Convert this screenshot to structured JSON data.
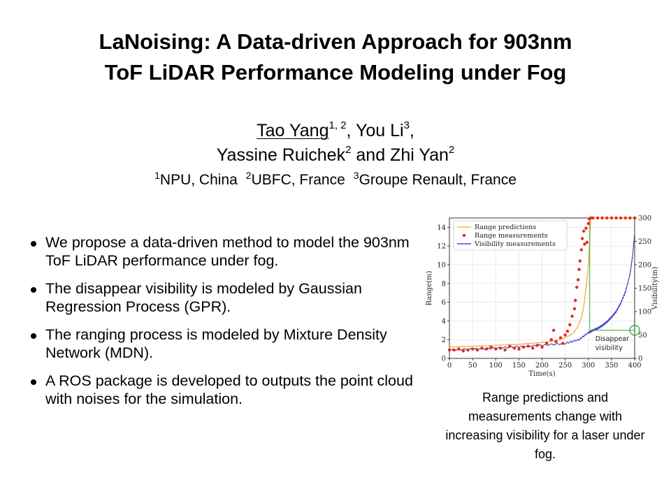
{
  "title": {
    "line1": "LaNoising: A Data-driven Approach for 903nm",
    "line2": "ToF LiDAR Performance Modeling under Fog"
  },
  "authors": {
    "a1": "Tao Yang",
    "a1_sup": "1, 2",
    "sep1": ", ",
    "a2": "You Li",
    "a2_sup": "3",
    "sep2": ",",
    "a3": "Yassine Ruichek",
    "a3_sup": "2",
    "sep3": " and ",
    "a4": "Zhi Yan",
    "a4_sup": "2"
  },
  "affiliations": [
    {
      "sup": "1",
      "text": "NPU, China"
    },
    {
      "sup": "2",
      "text": "UBFC, France"
    },
    {
      "sup": "3",
      "text": "Groupe Renault, France"
    }
  ],
  "bullets": [
    "We propose a data-driven method to model the 903nm ToF LiDAR performance under fog.",
    "The disappear visibility is modeled by Gaussian Regression Process (GPR).",
    "The ranging process is modeled by Mixture Density Network (MDN).",
    "A ROS package is developed to outputs the point cloud with noises for the simulation."
  ],
  "caption": "Range predictions and measurements change with increasing visibility for a laser under fog.",
  "chart_data": {
    "type": "line",
    "xlabel": "Time(s)",
    "ylabel_left": "Range(m)",
    "ylabel_right": "Visibility(m)",
    "xlim": [
      0,
      400
    ],
    "ylim_left": [
      0,
      15
    ],
    "ylim_right": [
      0,
      300
    ],
    "x_ticks": [
      0,
      50,
      100,
      150,
      200,
      250,
      300,
      350,
      400
    ],
    "y_left_ticks": [
      0,
      2,
      4,
      6,
      8,
      10,
      12,
      14
    ],
    "y_right_ticks": [
      0,
      50,
      100,
      150,
      200,
      250,
      300
    ],
    "grid": true,
    "legend_position": "top-left",
    "annotation": {
      "text_line1": "Disappear",
      "text_line2": "visibility",
      "x": 400,
      "visibility": 60
    },
    "colors": {
      "prediction": "#f5a623",
      "measurement": "#e8271c",
      "visibility": "#2b2bb8",
      "annotation": "#33aa33"
    },
    "series": [
      {
        "name": "Range predictions",
        "axis": "left",
        "x": [
          0,
          50,
          100,
          150,
          200,
          230,
          250,
          265,
          275,
          285,
          290,
          295,
          300,
          303,
          305,
          310,
          350,
          400
        ],
        "y": [
          1.2,
          1.3,
          1.4,
          1.5,
          1.7,
          1.9,
          2.2,
          2.6,
          3.2,
          4.3,
          5.5,
          7.5,
          9.8,
          12.5,
          15.0,
          15.0,
          15.0,
          15.0
        ]
      },
      {
        "name": "Range measurements",
        "axis": "left",
        "x": [
          0,
          10,
          20,
          30,
          40,
          50,
          60,
          70,
          80,
          90,
          100,
          110,
          120,
          130,
          140,
          150,
          160,
          170,
          180,
          190,
          200,
          210,
          220,
          225,
          230,
          240,
          245,
          250,
          255,
          260,
          265,
          270,
          272,
          275,
          278,
          280,
          282,
          285,
          287,
          290,
          292,
          295,
          297,
          300,
          302,
          305,
          310,
          320,
          330,
          340,
          350,
          360,
          370,
          380,
          390,
          400
        ],
        "y": [
          0.9,
          0.9,
          1.0,
          0.8,
          0.9,
          1.0,
          0.9,
          1.1,
          1.0,
          1.2,
          1.0,
          1.1,
          0.9,
          1.3,
          1.1,
          1.0,
          1.2,
          1.3,
          1.1,
          1.4,
          1.2,
          1.6,
          2.0,
          3.0,
          1.8,
          2.2,
          1.6,
          2.5,
          2.9,
          3.6,
          4.5,
          5.3,
          6.2,
          7.6,
          8.4,
          9.5,
          10.4,
          11.6,
          12.8,
          13.6,
          12.2,
          13.9,
          12.4,
          14.4,
          14.9,
          15.0,
          15.0,
          15.0,
          15.0,
          15.0,
          15.0,
          15.0,
          15.0,
          15.0,
          15.0,
          15.0
        ]
      },
      {
        "name": "Visibility measurements",
        "axis": "right",
        "x": [
          0,
          50,
          100,
          150,
          200,
          250,
          280,
          300,
          310,
          320,
          330,
          340,
          350,
          360,
          370,
          380,
          390,
          395,
          400
        ],
        "y": [
          18,
          20,
          22,
          25,
          28,
          32,
          40,
          55,
          60,
          64,
          70,
          78,
          88,
          100,
          118,
          142,
          180,
          215,
          265
        ]
      }
    ]
  }
}
